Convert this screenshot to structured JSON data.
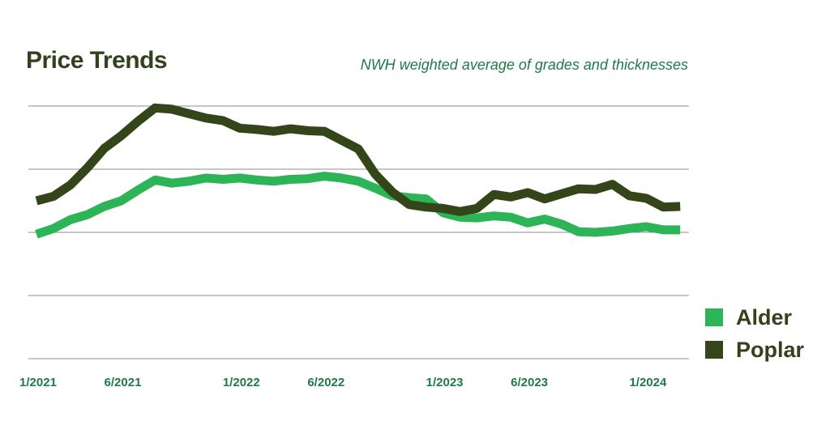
{
  "chart_data": {
    "type": "line",
    "title": "Price Trends",
    "subtitle": "NWH weighted average of grades and thicknesses",
    "xlabel": "",
    "ylabel": "",
    "ylim": [
      0,
      4
    ],
    "grid": true,
    "legend_position": "right",
    "tick_labels": [
      "1/2021",
      "6/2021",
      "1/2022",
      "6/2022",
      "1/2023",
      "6/2023",
      "1/2024"
    ],
    "tick_months": [
      0,
      5,
      12,
      17,
      24,
      29,
      36
    ],
    "x_months": [
      0,
      1,
      2,
      3,
      4,
      5,
      6,
      7,
      8,
      9,
      10,
      11,
      12,
      13,
      14,
      15,
      16,
      17,
      18,
      19,
      20,
      21,
      22,
      23,
      24,
      25,
      26,
      27,
      28,
      29,
      30,
      31,
      32,
      33,
      34,
      35,
      36,
      37,
      38
    ],
    "series": [
      {
        "name": "Alder",
        "color": "#2db457",
        "values": [
          1.97,
          2.06,
          2.2,
          2.28,
          2.41,
          2.5,
          2.67,
          2.83,
          2.78,
          2.81,
          2.86,
          2.84,
          2.86,
          2.83,
          2.81,
          2.84,
          2.85,
          2.89,
          2.86,
          2.81,
          2.7,
          2.58,
          2.55,
          2.53,
          2.31,
          2.24,
          2.23,
          2.26,
          2.24,
          2.15,
          2.21,
          2.13,
          2.01,
          2.0,
          2.02,
          2.06,
          2.09,
          2.04,
          2.04
        ]
      },
      {
        "name": "Poplar",
        "color": "#344619",
        "values": [
          2.5,
          2.57,
          2.75,
          3.02,
          3.33,
          3.53,
          3.76,
          3.97,
          3.95,
          3.88,
          3.81,
          3.77,
          3.65,
          3.63,
          3.6,
          3.64,
          3.61,
          3.6,
          3.46,
          3.32,
          2.92,
          2.64,
          2.44,
          2.4,
          2.38,
          2.33,
          2.38,
          2.6,
          2.56,
          2.63,
          2.53,
          2.61,
          2.69,
          2.68,
          2.76,
          2.58,
          2.54,
          2.4,
          2.41
        ]
      }
    ]
  },
  "colors": {
    "title": "#33421d",
    "subtitle": "#1f7a4a",
    "tick_label": "#1f7a4a",
    "grid": "#8c8c8c"
  }
}
